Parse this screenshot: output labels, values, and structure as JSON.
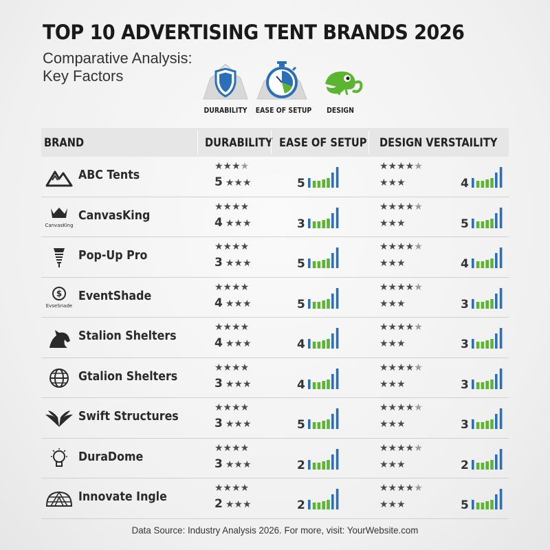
{
  "title": "TOP 10 ADVERTISING TENT BRANDS 2026",
  "subtitle": "Comparative Analysis: Key Factors",
  "factors": [
    {
      "label": "DURABILITY",
      "icon": "shield-tent-icon",
      "color": "#2a6fb8"
    },
    {
      "label": "EASE OF SETUP",
      "icon": "stopwatch-tent-icon",
      "color": "#2a6fb8"
    },
    {
      "label": "DESIGN",
      "icon": "chameleon-icon",
      "color": "#5cb531"
    }
  ],
  "table": {
    "headers": [
      "BRAND",
      "DURABILITY",
      "EASE OF SETUP",
      "DESIGN VERSTAILITY"
    ]
  },
  "colors": {
    "bar_green": "#5cb531",
    "bar_blue": "#2a6fb8",
    "star": "#4a4a4a"
  },
  "chart_data": {
    "type": "table",
    "title": "TOP 10 ADVERTISING TENT BRANDS 2026",
    "columns": [
      "BRAND",
      "DURABILITY",
      "EASE OF SETUP",
      "DESIGN VERSTAILITY"
    ],
    "rows": [
      {
        "brand": "ABC Tents",
        "logo": "mountain-logo-icon",
        "durability_stars_top": 3.5,
        "durability": 5,
        "ease_of_setup": 5,
        "design_stars_top": 4,
        "design_stars_bottom": 3,
        "design_versatility": 4
      },
      {
        "brand": "CanvasKing",
        "logo": "crown-logo-icon",
        "logo_text": "CanvasKing",
        "durability_stars_top": 4,
        "durability": 4,
        "ease_of_setup": 3,
        "design_stars_top": 4,
        "design_stars_bottom": 3,
        "design_versatility": 5
      },
      {
        "brand": "Pop-Up Pro",
        "logo": "spring-logo-icon",
        "durability_stars_top": 4,
        "durability": 3,
        "ease_of_setup": 5,
        "design_stars_top": 4,
        "design_stars_bottom": 3,
        "design_versatility": 4
      },
      {
        "brand": "EventShade",
        "logo": "shade-logo-icon",
        "logo_text": "EvseSnade",
        "durability_stars_top": 4,
        "durability": 4,
        "ease_of_setup": 5,
        "design_stars_top": 4,
        "design_stars_bottom": 3,
        "design_versatility": 3
      },
      {
        "brand": "Stalion Shelters",
        "logo": "horse-logo-icon",
        "durability_stars_top": 4,
        "durability": 4,
        "ease_of_setup": 4,
        "design_stars_top": 4,
        "design_stars_bottom": 3,
        "design_versatility": 3
      },
      {
        "brand": "Gtalion Shelters",
        "logo": "globe-logo-icon",
        "durability_stars_top": 4,
        "durability": 3,
        "ease_of_setup": 4,
        "design_stars_top": 4,
        "design_stars_bottom": 3,
        "design_versatility": 3
      },
      {
        "brand": "Swift Structures",
        "logo": "wings-logo-icon",
        "durability_stars_top": 4,
        "durability": 3,
        "ease_of_setup": 5,
        "design_stars_top": 4,
        "design_stars_bottom": 3,
        "design_versatility": 3
      },
      {
        "brand": "DuraDome",
        "logo": "lightbulb-logo-icon",
        "durability_stars_top": 4,
        "durability": 3,
        "ease_of_setup": 2,
        "design_stars_top": 4,
        "design_stars_bottom": 3,
        "design_versatility": 2
      },
      {
        "brand": "Innovate Ingle",
        "logo": "dome-logo-icon",
        "durability_stars_top": 4,
        "durability": 2,
        "ease_of_setup": 2,
        "design_stars_top": 4,
        "design_stars_bottom": 3,
        "design_versatility": 5
      }
    ]
  },
  "footer": "Data Source: Industry Analysis 2026. For more, visit: YourWebsite.com"
}
